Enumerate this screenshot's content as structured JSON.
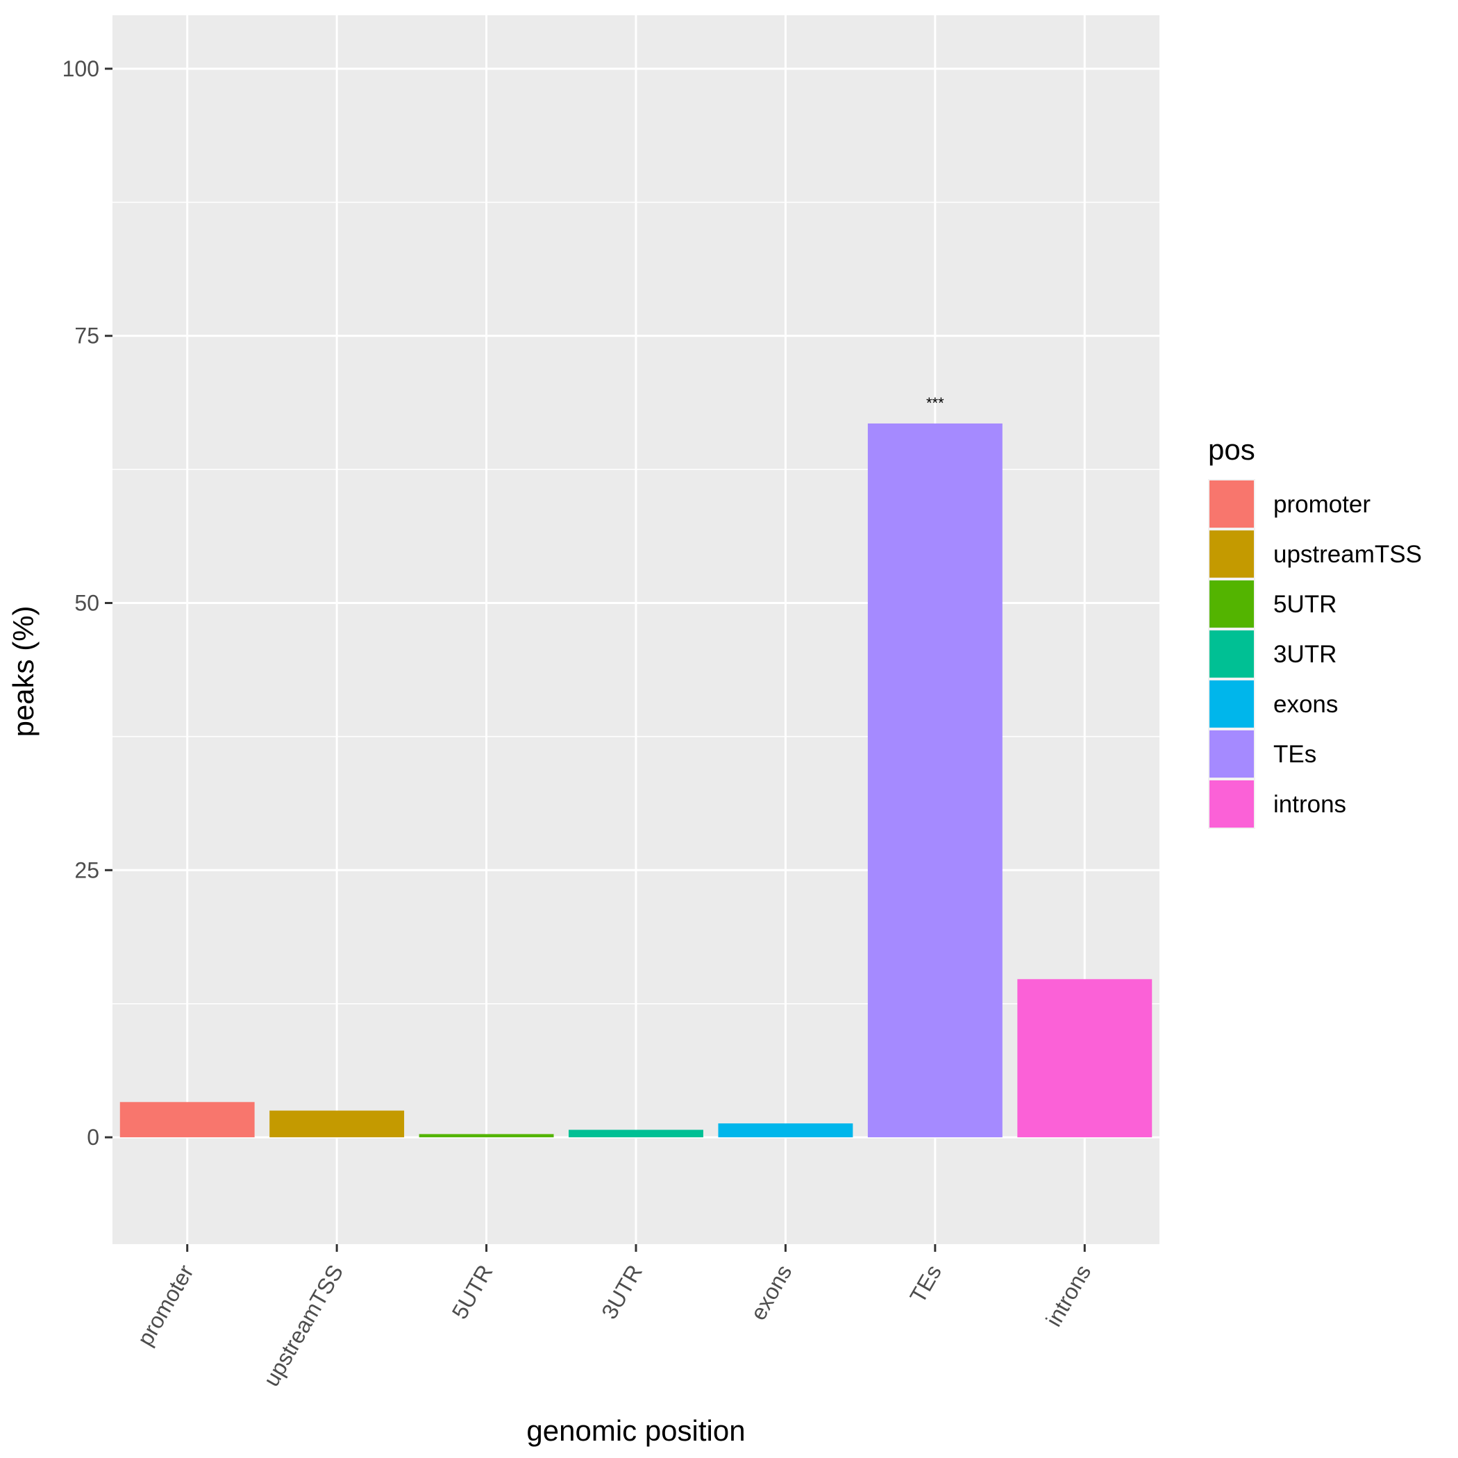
{
  "chart_data": {
    "type": "bar",
    "xlabel": "genomic position",
    "ylabel": "peaks (%)",
    "ylim": [
      -10,
      105
    ],
    "yticks": [
      0,
      25,
      50,
      75,
      100
    ],
    "grid": true,
    "categories": [
      "promoter",
      "upstreamTSS",
      "5UTR",
      "3UTR",
      "exons",
      "TEs",
      "introns"
    ],
    "values": [
      3.3,
      2.5,
      0.3,
      0.7,
      1.3,
      66.8,
      14.8
    ],
    "colors": [
      "#F8766D",
      "#C49A00",
      "#53B400",
      "#00C094",
      "#00B6EB",
      "#A58AFF",
      "#FB61D7"
    ],
    "annotations": [
      {
        "category": "TEs",
        "text": "***"
      }
    ],
    "legend": {
      "title": "pos",
      "position": "right",
      "entries": [
        "promoter",
        "upstreamTSS",
        "5UTR",
        "3UTR",
        "exons",
        "TEs",
        "introns"
      ]
    }
  }
}
